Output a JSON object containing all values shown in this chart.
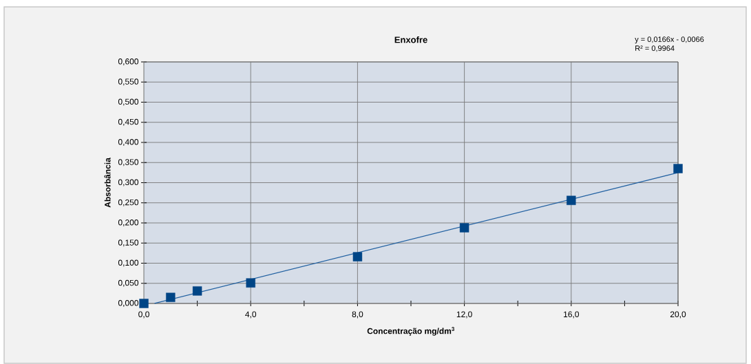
{
  "chart_data": {
    "type": "scatter",
    "title": "Enxofre",
    "xlabel": "Concentração mg/dm$^{3}$",
    "ylabel": "Absorbância",
    "annotations": [
      "y = 0,0166x - 0,0066",
      "R² = 0,9964"
    ],
    "series": [
      {
        "color": "#004586",
        "marker": "square",
        "x": [
          0,
          1,
          2,
          4,
          8,
          12,
          16,
          20
        ],
        "values": [
          0.0,
          0.015,
          0.031,
          0.051,
          0.116,
          0.188,
          0.256,
          0.335
        ]
      },
      {
        "type": "line",
        "color": "#1f5fa0",
        "marker": "none",
        "x": [
          0.4,
          20
        ],
        "values": [
          0.0,
          0.325
        ]
      }
    ],
    "xlim": [
      0,
      20
    ],
    "xticks": [
      {
        "value": 0,
        "label": "0,0"
      },
      {
        "value": 2,
        "label": null
      },
      {
        "value": 4,
        "label": "4,0"
      },
      {
        "value": 6,
        "label": null
      },
      {
        "value": 8,
        "label": "8,0"
      },
      {
        "value": 10,
        "label": null
      },
      {
        "value": 12,
        "label": "12,0"
      },
      {
        "value": 14,
        "label": null
      },
      {
        "value": 16,
        "label": "16,0"
      },
      {
        "value": 18,
        "label": null
      },
      {
        "value": 20,
        "label": "20,0"
      }
    ],
    "ylim": [
      0,
      0.6
    ],
    "yticks": [
      {
        "value": 0,
        "label": "0,000"
      },
      {
        "value": 0.05,
        "label": "0,050"
      },
      {
        "value": 0.1,
        "label": "0,100"
      },
      {
        "value": 0.15,
        "label": "0,150"
      },
      {
        "value": 0.2,
        "label": "0,200"
      },
      {
        "value": 0.25,
        "label": "0,250"
      },
      {
        "value": 0.3,
        "label": "0,300"
      },
      {
        "value": 0.35,
        "label": "0,350"
      },
      {
        "value": 0.4,
        "label": "0,400"
      },
      {
        "value": 0.45,
        "label": "0,450"
      },
      {
        "value": 0.5,
        "label": "0,500"
      },
      {
        "value": 0.55,
        "label": "0,550"
      },
      {
        "value": 0.6,
        "label": "0,600"
      }
    ],
    "grid": true
  }
}
